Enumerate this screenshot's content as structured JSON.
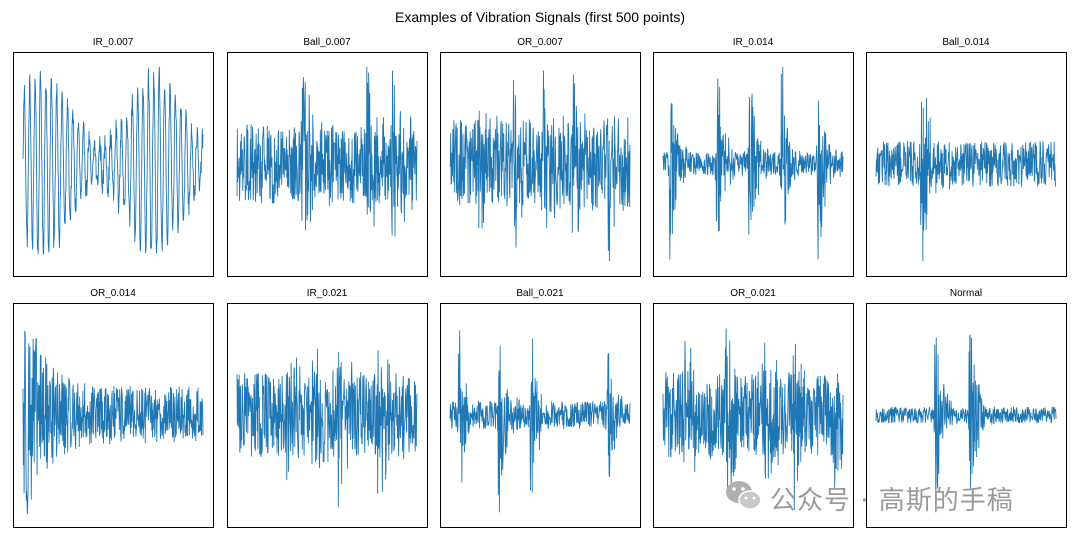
{
  "chart_data": {
    "type": "line",
    "title": "Examples of Vibration Signals (first 500 points)",
    "points_per_panel": 500,
    "line_color": "#1f77b4",
    "axes_visible": false,
    "panels": [
      {
        "name": "IR_0.007",
        "pattern": "periodic",
        "amplitude": 0.95,
        "baseline_noise": 0.25,
        "impacts": [],
        "decay": 0
      },
      {
        "name": "Ball_0.007",
        "pattern": "noise",
        "amplitude": 0.95,
        "baseline_noise": 0.35,
        "impacts": [
          0.36,
          0.72,
          0.86
        ],
        "decay": 0
      },
      {
        "name": "OR_0.007",
        "pattern": "noise",
        "amplitude": 0.95,
        "baseline_noise": 0.55,
        "impacts": [
          0.16,
          0.35,
          0.52,
          0.68,
          0.88
        ],
        "decay": 0
      },
      {
        "name": "IR_0.014",
        "pattern": "bursts",
        "amplitude": 0.95,
        "baseline_noise": 0.12,
        "impacts": [
          0.04,
          0.3,
          0.48,
          0.66,
          0.86
        ],
        "decay": 0
      },
      {
        "name": "Ball_0.014",
        "pattern": "noise",
        "amplitude": 0.95,
        "baseline_noise": 0.18,
        "impacts": [
          0.25
        ],
        "decay": 0
      },
      {
        "name": "OR_0.014",
        "pattern": "decaying",
        "amplitude": 0.97,
        "baseline_noise": 0.25,
        "impacts": [
          0.02
        ],
        "decay": 1
      },
      {
        "name": "IR_0.021",
        "pattern": "noise",
        "amplitude": 0.9,
        "baseline_noise": 0.5,
        "impacts": [
          0.28,
          0.42,
          0.56,
          0.78
        ],
        "decay": 0
      },
      {
        "name": "Ball_0.021",
        "pattern": "bursts",
        "amplitude": 0.95,
        "baseline_noise": 0.15,
        "impacts": [
          0.05,
          0.27,
          0.45,
          0.87
        ],
        "decay": 0
      },
      {
        "name": "OR_0.021",
        "pattern": "noise",
        "amplitude": 0.93,
        "baseline_noise": 0.55,
        "impacts": [
          0.12,
          0.35,
          0.55,
          0.72,
          0.95
        ],
        "decay": 0
      },
      {
        "name": "Normal",
        "pattern": "bursts",
        "amplitude": 0.95,
        "baseline_noise": 0.08,
        "impacts": [
          0.33,
          0.52
        ],
        "decay": 0
      }
    ]
  },
  "watermark": {
    "text": "公众号 · 高斯的手稿"
  }
}
